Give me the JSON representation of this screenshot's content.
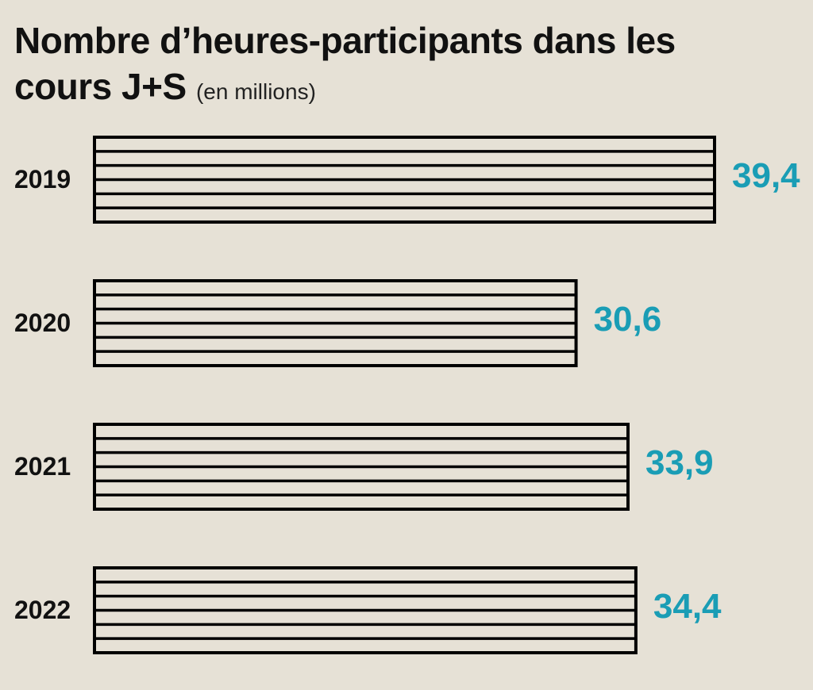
{
  "chart_data": {
    "type": "bar",
    "orientation": "horizontal",
    "title": "Nombre d’heures-participants dans les cours J+S",
    "subtitle": "(en millions)",
    "categories": [
      "2019",
      "2020",
      "2021",
      "2022"
    ],
    "values": [
      39.4,
      30.6,
      33.9,
      34.4
    ],
    "value_labels": [
      "39,4",
      "30,6",
      "33,9",
      "34,4"
    ],
    "color": "#000000",
    "label_color": "#1a9db5"
  }
}
